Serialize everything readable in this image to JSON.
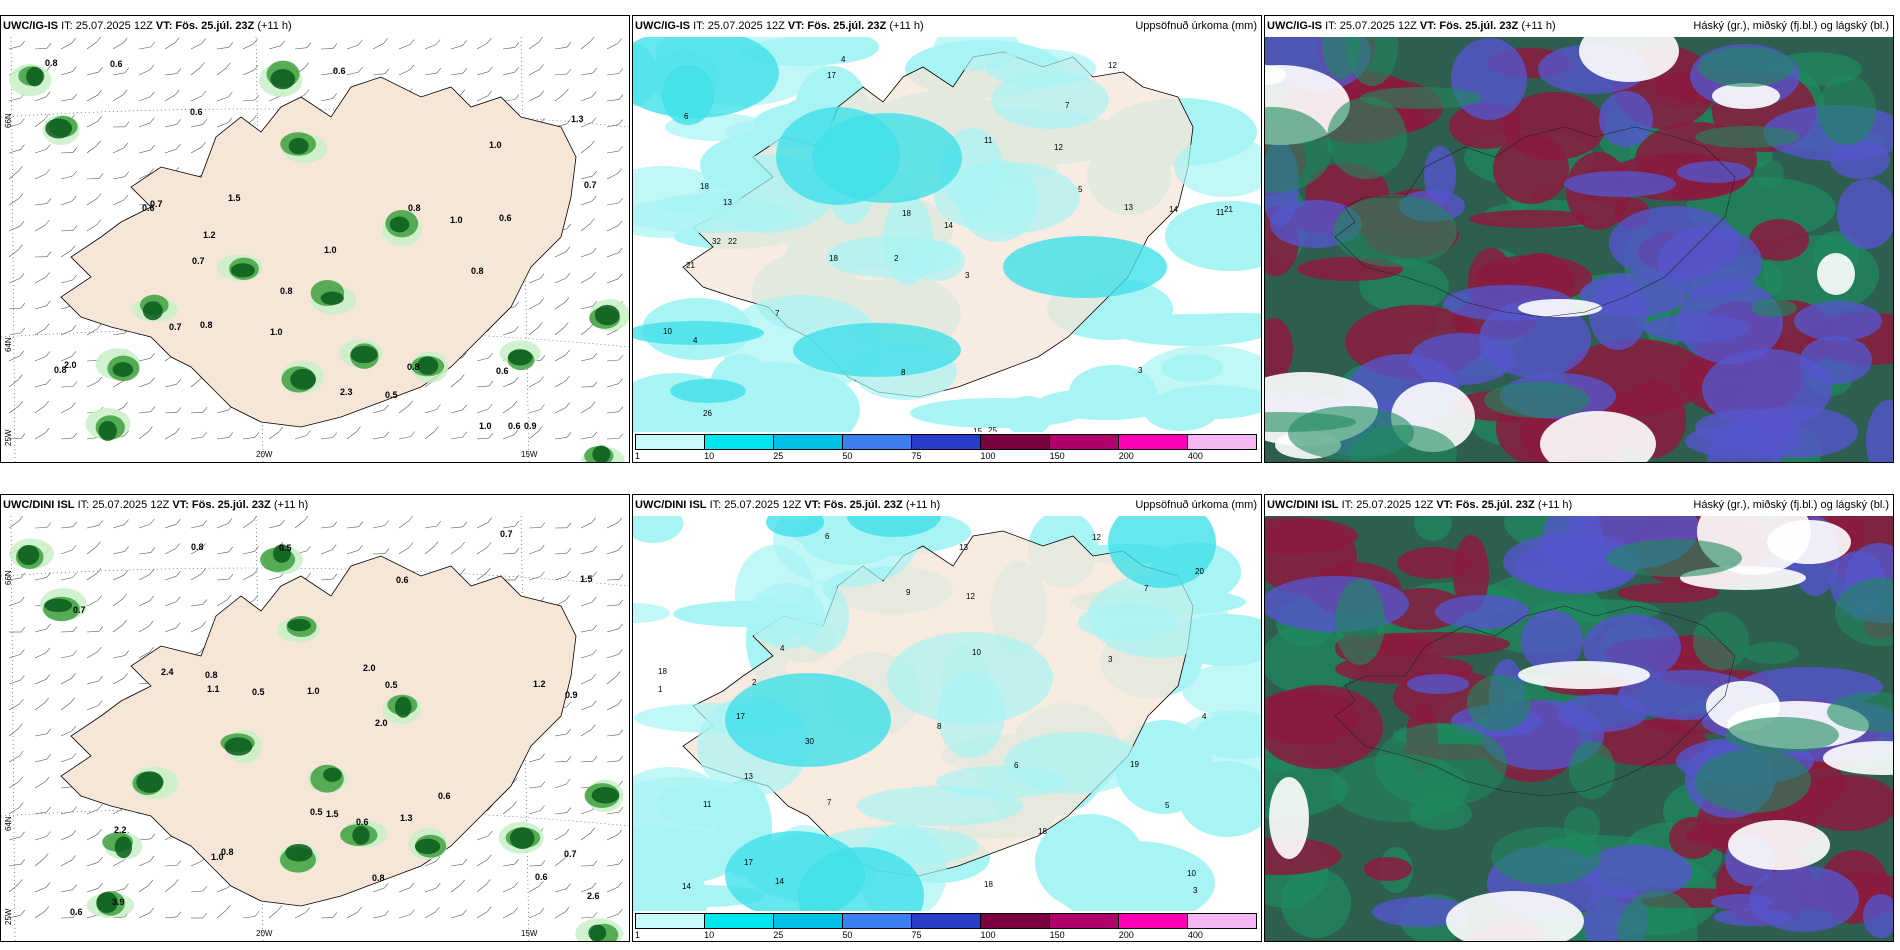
{
  "panels": [
    {
      "model": "UWC/IG-IS",
      "it": "IT: 25.07.2025 12Z",
      "vt": "VT: Fös. 25.júl. 23Z",
      "lead": "(+11 h)",
      "right": ""
    },
    {
      "model": "UWC/IG-IS",
      "it": "IT: 25.07.2025 12Z",
      "vt": "VT: Fös. 25.júl. 23Z",
      "lead": "(+11 h)",
      "right": "Uppsöfnuð úrkoma (mm)"
    },
    {
      "model": "UWC/IG-IS",
      "it": "IT: 25.07.2025 12Z",
      "vt": "VT: Fös. 25.júl. 23Z",
      "lead": "(+11 h)",
      "right": "Háský (gr.), miðský (fj.bl.) og lágský (bl.)"
    },
    {
      "model": "UWC/DINI ISL",
      "it": "IT: 25.07.2025 12Z",
      "vt": "VT: Fös. 25.júl. 23Z",
      "lead": "(+11 h)",
      "right": ""
    },
    {
      "model": "UWC/DINI ISL",
      "it": "IT: 25.07.2025 12Z",
      "vt": "VT: Fös. 25.júl. 23Z",
      "lead": "(+11 h)",
      "right": "Uppsöfnuð úrkoma (mm)"
    },
    {
      "model": "UWC/DINI ISL",
      "it": "IT: 25.07.2025 12Z",
      "vt": "VT: Fös. 25.júl. 23Z",
      "lead": "(+11 h)",
      "right": "Háský (gr.), miðský (fj.bl.) og lágský (bl.)"
    }
  ],
  "axis": {
    "lat_top": "66N",
    "lat_mid": "64N",
    "lon_left": "25W",
    "lon_mid": "20W",
    "lon_right": "15W"
  },
  "legend": {
    "ticks": [
      "1",
      "10",
      "25",
      "50",
      "75",
      "100",
      "150",
      "200",
      "400"
    ],
    "colors": [
      "#c8fafa",
      "#00e6ee",
      "#00c0e8",
      "#3c7ff0",
      "#2a3dc8",
      "#7a0040",
      "#b0006a",
      "#ff00b4",
      "#f4b6f0"
    ]
  },
  "colors": {
    "land": "#f5e6d8",
    "precip_light": "#a8f4f4",
    "precip_mid": "#40e0e8",
    "wind_green_light": "#c8f0c8",
    "wind_green": "#40a040",
    "wind_green_dark": "#0b5a1c",
    "cloud_red": "#8b1a3e",
    "cloud_blue": "#5555cc",
    "cloud_green": "#1e8a5e"
  },
  "map_labels": {
    "p1": [
      "0.8",
      "0.6",
      "0.6",
      "0.8",
      "0.9",
      "0.6",
      "1.0",
      "0.7",
      "0.8",
      "1.0",
      "0.6",
      "0.6",
      "0.8",
      "1.0",
      "1.2",
      "0.8",
      "1.0",
      "0.7",
      "1.3",
      "1.5",
      "0.6",
      "0.7",
      "0.5",
      "0.7",
      "0.6",
      "0.8",
      "2.3",
      "2.0",
      "1.0",
      "0.8"
    ],
    "p2": [
      "4",
      "7",
      "11",
      "2",
      "3",
      "22",
      "6",
      "12",
      "21",
      "11",
      "14",
      "26",
      "17",
      "18",
      "15",
      "25",
      "8",
      "12",
      "5",
      "7",
      "13",
      "32",
      "21",
      "14",
      "10",
      "18",
      "18",
      "13",
      "3",
      "4"
    ],
    "p4": [
      "0.6",
      "0.7",
      "0.8",
      "2.4",
      "0.6",
      "0.5",
      "2.0",
      "1.0",
      "0.5",
      "1.5",
      "2.0",
      "0.9",
      "1.1",
      "0.8",
      "0.6",
      "1.0",
      "0.7",
      "1.3",
      "1.2",
      "2.2",
      "0.5",
      "0.8",
      "0.6",
      "0.5",
      "1.5",
      "0.8",
      "0.7",
      "3.9",
      "0.6",
      "2.6"
    ],
    "p5": [
      "5",
      "7",
      "4",
      "19",
      "3",
      "7",
      "11",
      "8",
      "30",
      "18",
      "6",
      "9",
      "10",
      "12",
      "17",
      "13",
      "10",
      "12",
      "14",
      "18",
      "18",
      "20",
      "14",
      "3",
      "17",
      "13",
      "2",
      "1",
      "4",
      "6"
    ]
  }
}
